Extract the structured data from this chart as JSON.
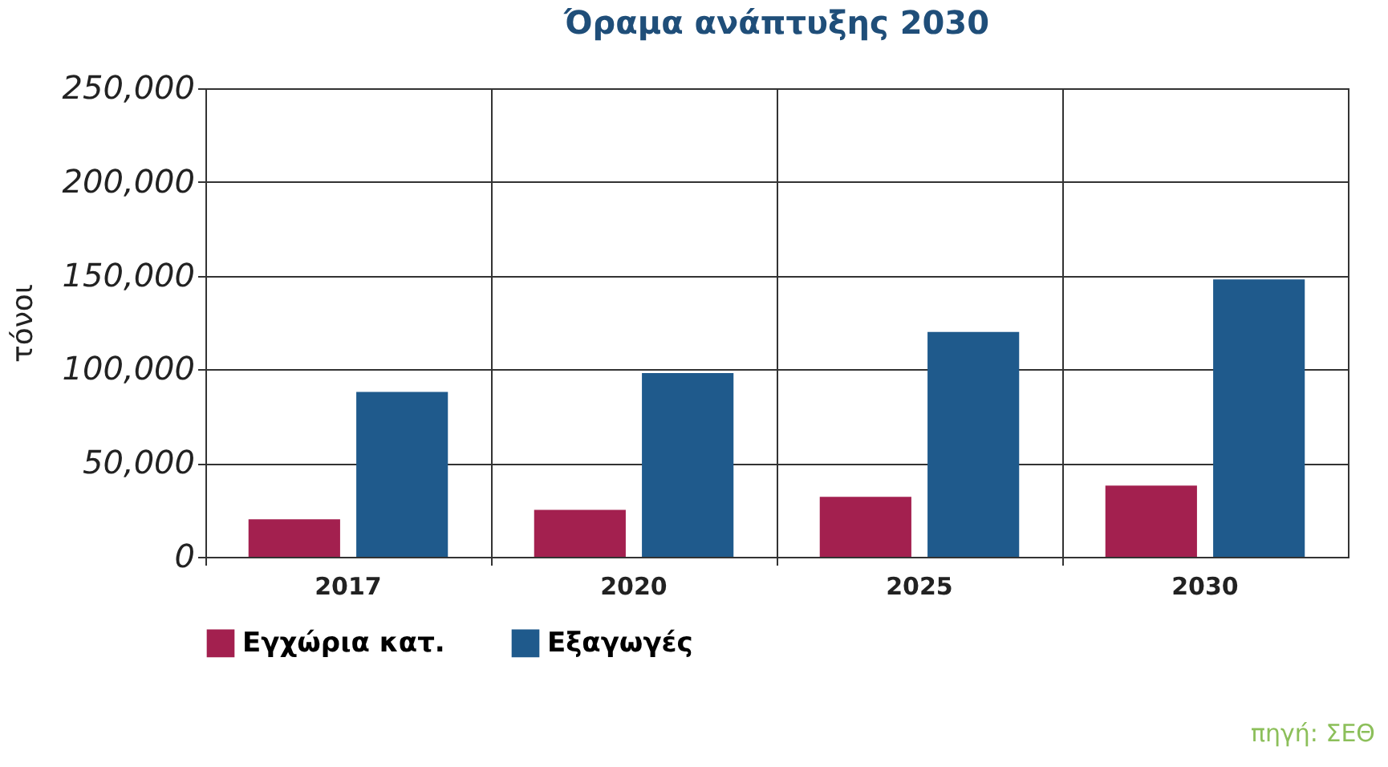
{
  "chart_data": {
    "type": "bar",
    "title": "Όραμα ανάπτυξης 2030",
    "ylabel": "τόνοι",
    "categories": [
      "2017",
      "2020",
      "2025",
      "2030"
    ],
    "series": [
      {
        "name": "Εγχώρια κατ.",
        "color": "#a3204f",
        "values": [
          20000,
          25000,
          32000,
          38000
        ]
      },
      {
        "name": "Εξαγωγές",
        "color": "#1f5a8c",
        "values": [
          88000,
          98000,
          120000,
          148000
        ]
      }
    ],
    "ylim": [
      0,
      250000
    ],
    "yticks": [
      {
        "value": 0,
        "label": "0"
      },
      {
        "value": 50000,
        "label": "50,000"
      },
      {
        "value": 100000,
        "label": "100,000"
      },
      {
        "value": 150000,
        "label": "150,000"
      },
      {
        "value": 200000,
        "label": "200,000"
      },
      {
        "value": 250000,
        "label": "250,000"
      }
    ],
    "grid": true,
    "legend": "bottom",
    "annotations": [
      "πηγή: ΣΕΘ"
    ]
  }
}
